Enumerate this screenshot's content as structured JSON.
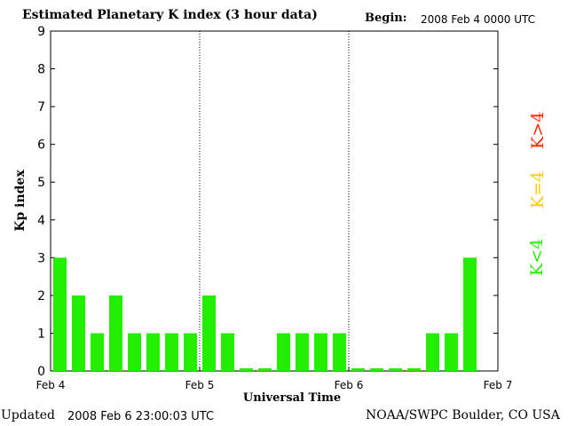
{
  "header": {
    "title": "Estimated Planetary K index (3 hour data)",
    "begin_label": "Begin:",
    "begin_value": "2008 Feb 4 0000 UTC"
  },
  "footer": {
    "updated_label": "Updated",
    "updated_value": "2008 Feb  6 23:00:03 UTC",
    "credit": "NOAA/SWPC Boulder, CO USA"
  },
  "legend": [
    {
      "label": "K>4",
      "color": "#ff2a00"
    },
    {
      "label": "K=4",
      "color": "#ffcc00"
    },
    {
      "label": "K<4",
      "color": "#22ee00"
    }
  ],
  "chart_data": {
    "type": "bar",
    "title": "Estimated Planetary K index (3 hour data)",
    "xlabel": "Universal Time",
    "ylabel": "Kp index",
    "ylim": [
      0,
      9
    ],
    "yticks": [
      "0",
      "1",
      "2",
      "3",
      "4",
      "5",
      "6",
      "7",
      "8",
      "9"
    ],
    "xticks": [
      "Feb 4",
      "Feb 5",
      "Feb 6",
      "Feb 7"
    ],
    "bar_color": "#22ee00",
    "series": [
      {
        "values": [
          3,
          2,
          1,
          2,
          1,
          1,
          1,
          1,
          2,
          1,
          0,
          0,
          1,
          1,
          1,
          1,
          0,
          0,
          0,
          0,
          1,
          1,
          3
        ]
      }
    ]
  }
}
